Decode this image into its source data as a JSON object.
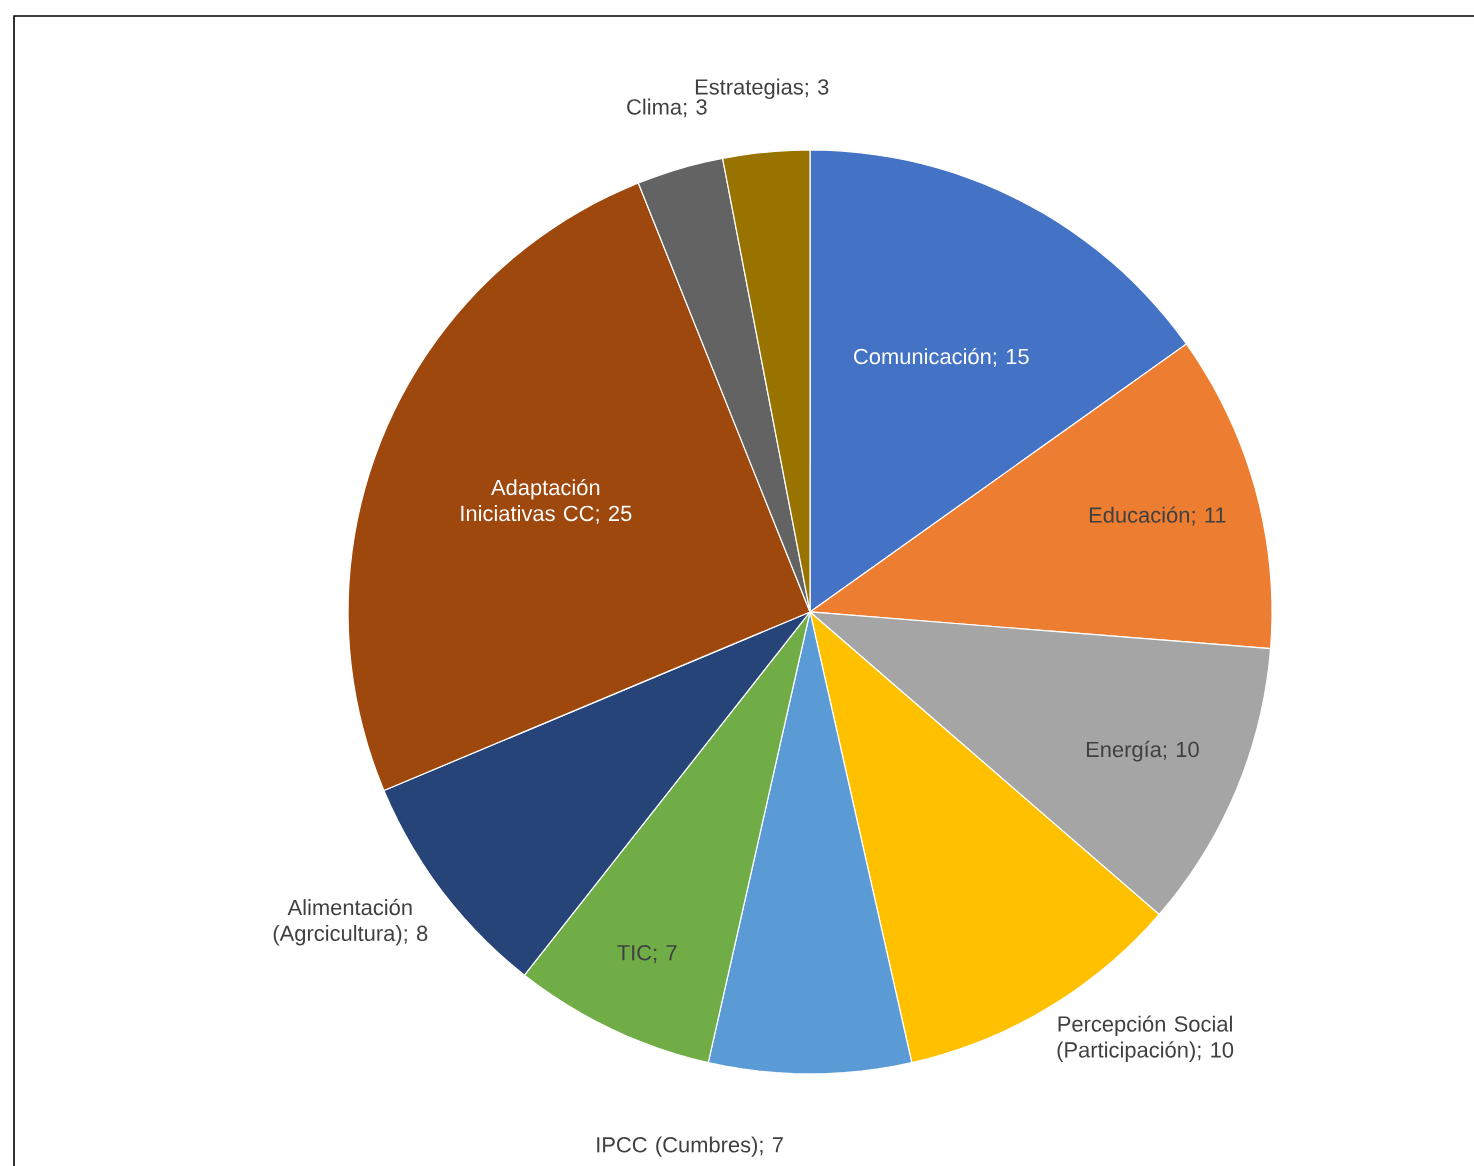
{
  "chart_data": {
    "type": "pie",
    "categories": [
      "Comunicación",
      "Educación",
      "Energía",
      "Percepción Social (Participación)",
      "IPCC (Cumbres)",
      "TIC",
      "Alimentación (Agrcicultura)",
      "Adaptación Iniciativas CC",
      "Clima",
      "Estrategias"
    ],
    "values": [
      15,
      11,
      10,
      10,
      7,
      7,
      8,
      25,
      3,
      3
    ],
    "value_labels": [
      "; 15",
      "; 11",
      "; 10",
      "; 10",
      "; 7",
      "; 7",
      "; 8",
      "; 25",
      "; 3",
      "; 3"
    ],
    "colors": [
      "#4472c4",
      "#ed7d31",
      "#a5a5a5",
      "#ffc000",
      "#5b9bd5",
      "#70ad47",
      "#264478",
      "#9e480e",
      "#636363",
      "#997300"
    ]
  }
}
